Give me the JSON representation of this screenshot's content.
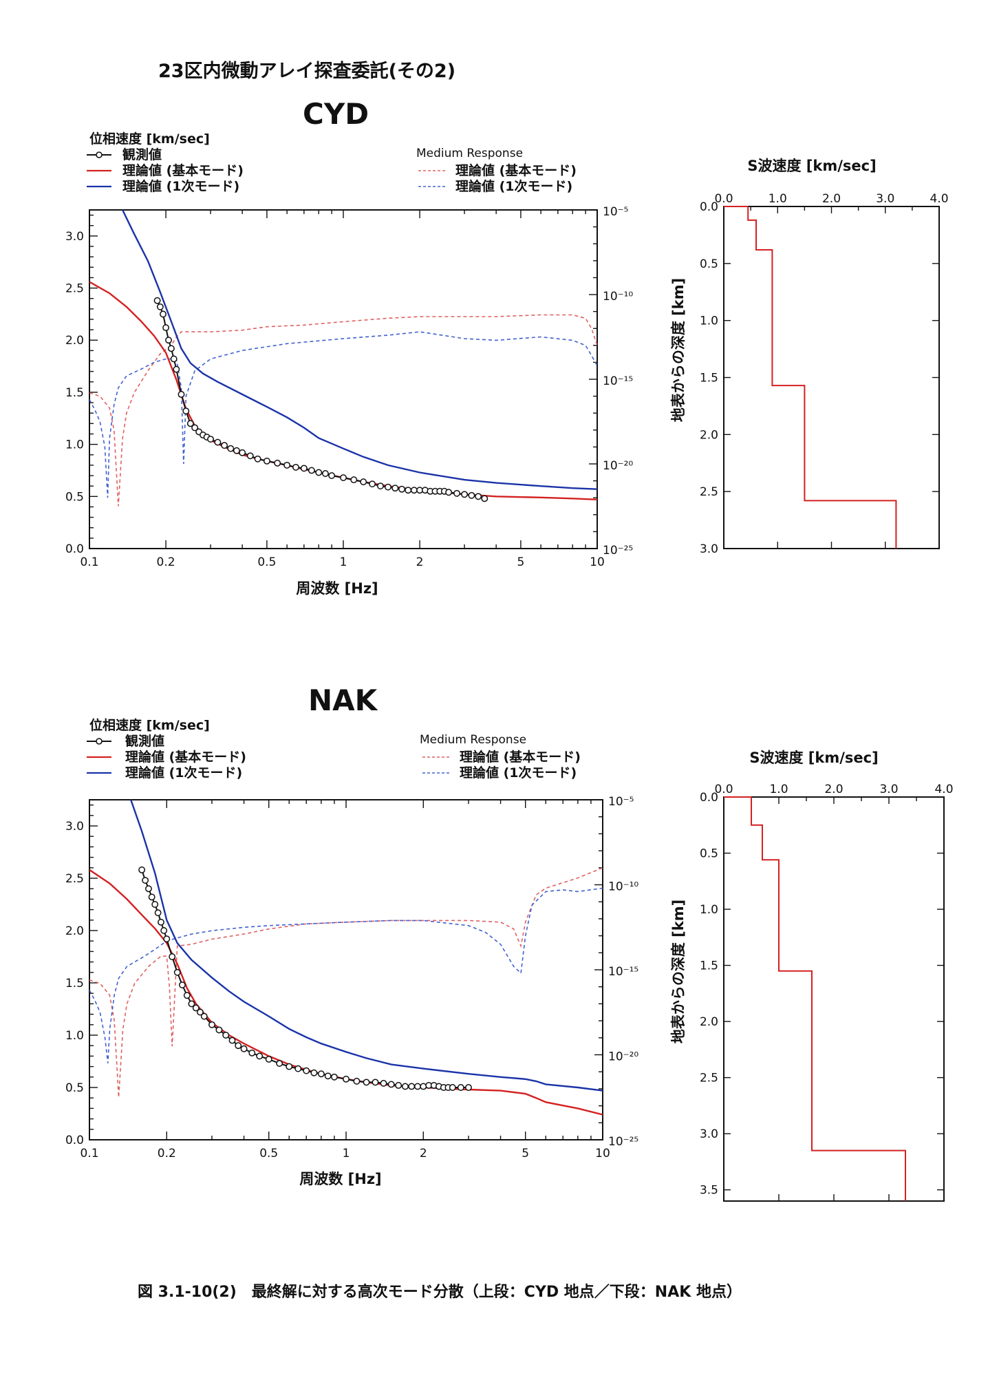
{
  "header": {
    "title": "23区内微動アレイ探査委託(その2)"
  },
  "caption": "図 3.1-10(2)　最終解に対する高次モード分散（上段：CYD 地点／下段：NAK 地点）",
  "legend": {
    "ylabel": "位相速度 [km/sec]",
    "observed": "観測値",
    "fundamental": "理論値 (基本モード)",
    "first_higher": "理論値 (1次モード)",
    "medium_response": "Medium Response",
    "mr_fundamental": "理論値 (基本モード)",
    "mr_first_higher": "理論値 (1次モード)"
  },
  "colors": {
    "observed": "#111111",
    "fundamental": "#d42020",
    "first_higher": "#1a33a8",
    "mr_fundamental": "#e06060",
    "mr_first_higher": "#4060d0",
    "profile": "#d42020"
  },
  "chart_data": [
    {
      "type": "line",
      "station": "CYD",
      "xlabel": "周波数 [Hz]",
      "ylabel": "位相速度 [km/sec]",
      "xscale": "log",
      "xlim": [
        0.1,
        10
      ],
      "ylim": [
        0,
        3.25
      ],
      "xticks": [
        "0.1",
        "0.2",
        "0.5",
        "1",
        "2",
        "5",
        "10"
      ],
      "xtick_values": [
        0.1,
        0.2,
        0.5,
        1,
        2,
        5,
        10
      ],
      "yticks": [
        "0.0",
        "0.5",
        "1.0",
        "1.5",
        "2.0",
        "2.5",
        "3.0"
      ],
      "ytick_values": [
        0,
        0.5,
        1.0,
        1.5,
        2.0,
        2.5,
        3.0
      ],
      "y2label": "Medium Response",
      "y2scale": "log",
      "y2lim": [
        1e-25,
        1e-05
      ],
      "y2ticks": [
        "10⁻⁵",
        "10⁻¹⁰",
        "10⁻¹⁵",
        "10⁻²⁰",
        "10⁻²⁵"
      ],
      "y2tick_exponents": [
        -5,
        -10,
        -15,
        -20,
        -25
      ],
      "series": [
        {
          "name": "観測値",
          "style": "marker-line",
          "x": [
            0.185,
            0.19,
            0.195,
            0.2,
            0.205,
            0.21,
            0.215,
            0.22,
            0.23,
            0.24,
            0.25,
            0.26,
            0.27,
            0.28,
            0.29,
            0.3,
            0.32,
            0.34,
            0.36,
            0.38,
            0.4,
            0.43,
            0.46,
            0.5,
            0.55,
            0.6,
            0.65,
            0.7,
            0.75,
            0.8,
            0.85,
            0.9,
            1.0,
            1.1,
            1.2,
            1.3,
            1.4,
            1.5,
            1.6,
            1.7,
            1.8,
            1.9,
            2.0,
            2.1,
            2.2,
            2.3,
            2.4,
            2.5,
            2.6,
            2.8,
            3.0,
            3.2,
            3.4,
            3.6
          ],
          "y": [
            2.38,
            2.32,
            2.25,
            2.12,
            2.0,
            1.92,
            1.82,
            1.72,
            1.48,
            1.32,
            1.2,
            1.16,
            1.12,
            1.09,
            1.07,
            1.05,
            1.02,
            0.99,
            0.96,
            0.94,
            0.92,
            0.89,
            0.86,
            0.84,
            0.82,
            0.8,
            0.78,
            0.77,
            0.75,
            0.73,
            0.72,
            0.7,
            0.68,
            0.66,
            0.64,
            0.62,
            0.6,
            0.59,
            0.58,
            0.57,
            0.56,
            0.56,
            0.56,
            0.56,
            0.55,
            0.55,
            0.55,
            0.55,
            0.54,
            0.53,
            0.52,
            0.51,
            0.5,
            0.48
          ]
        },
        {
          "name": "理論値 (基本モード)",
          "style": "solid",
          "color_key": "fundamental",
          "x": [
            0.1,
            0.12,
            0.14,
            0.16,
            0.18,
            0.2,
            0.22,
            0.24,
            0.26,
            0.28,
            0.3,
            0.35,
            0.4,
            0.5,
            0.6,
            0.7,
            0.8,
            1,
            1.2,
            1.5,
            2,
            3,
            4,
            6,
            8,
            10
          ],
          "y": [
            2.56,
            2.45,
            2.32,
            2.18,
            2.04,
            1.88,
            1.62,
            1.34,
            1.18,
            1.1,
            1.04,
            0.96,
            0.9,
            0.84,
            0.8,
            0.76,
            0.73,
            0.68,
            0.64,
            0.6,
            0.56,
            0.52,
            0.5,
            0.49,
            0.48,
            0.47
          ]
        },
        {
          "name": "理論値 (1次モード)",
          "style": "solid",
          "color_key": "first_higher",
          "x": [
            0.135,
            0.15,
            0.17,
            0.19,
            0.21,
            0.23,
            0.25,
            0.28,
            0.32,
            0.4,
            0.5,
            0.6,
            0.7,
            0.8,
            1,
            1.2,
            1.5,
            2,
            3,
            4,
            6,
            8,
            10
          ],
          "y": [
            3.25,
            3.02,
            2.76,
            2.46,
            2.18,
            1.92,
            1.78,
            1.68,
            1.6,
            1.48,
            1.36,
            1.26,
            1.16,
            1.06,
            0.96,
            0.88,
            0.8,
            0.73,
            0.66,
            0.63,
            0.6,
            0.58,
            0.57
          ]
        },
        {
          "name": "理論値 (基本モード)",
          "style": "dashed",
          "axis": "y2",
          "color_key": "mr_fundamental",
          "x": [
            0.1,
            0.11,
            0.12,
            0.125,
            0.13,
            0.135,
            0.14,
            0.15,
            0.17,
            0.19,
            0.21,
            0.22,
            0.23,
            0.26,
            0.3,
            0.4,
            0.5,
            0.7,
            1,
            1.5,
            2,
            3,
            4,
            6,
            8,
            9,
            9.5,
            10
          ],
          "y_exp": [
            -15.8,
            -16.0,
            -16.7,
            -18.0,
            -22.5,
            -18.5,
            -17.0,
            -15.8,
            -14.5,
            -13.5,
            -13.0,
            -12.5,
            -12.2,
            -12.2,
            -12.2,
            -12.1,
            -11.9,
            -11.8,
            -11.6,
            -11.4,
            -11.3,
            -11.3,
            -11.3,
            -11.2,
            -11.2,
            -11.4,
            -12.0,
            -13.0
          ]
        },
        {
          "name": "理論値 (1次モード)",
          "style": "dashed",
          "axis": "y2",
          "color_key": "mr_first_higher",
          "x": [
            0.1,
            0.105,
            0.11,
            0.115,
            0.118,
            0.12,
            0.125,
            0.13,
            0.14,
            0.16,
            0.18,
            0.2,
            0.22,
            0.23,
            0.235,
            0.24,
            0.26,
            0.3,
            0.4,
            0.6,
            1,
            1.5,
            2,
            3,
            4,
            6,
            8,
            9,
            9.5,
            10
          ],
          "y_exp": [
            -16.2,
            -16.8,
            -17.5,
            -19.0,
            -22.0,
            -18.5,
            -16.5,
            -15.5,
            -14.8,
            -14.4,
            -14.0,
            -13.8,
            -13.8,
            -15.5,
            -20.0,
            -16.0,
            -14.5,
            -13.8,
            -13.3,
            -12.9,
            -12.6,
            -12.4,
            -12.2,
            -12.6,
            -12.7,
            -12.5,
            -12.7,
            -13.0,
            -13.6,
            -14.2
          ]
        }
      ]
    },
    {
      "type": "line",
      "station": "NAK",
      "xlabel": "周波数 [Hz]",
      "ylabel": "位相速度 [km/sec]",
      "xscale": "log",
      "xlim": [
        0.1,
        10
      ],
      "ylim": [
        0,
        3.25
      ],
      "xticks": [
        "0.1",
        "0.2",
        "0.5",
        "1",
        "2",
        "5",
        "10"
      ],
      "xtick_values": [
        0.1,
        0.2,
        0.5,
        1,
        2,
        5,
        10
      ],
      "yticks": [
        "0.0",
        "0.5",
        "1.0",
        "1.5",
        "2.0",
        "2.5",
        "3.0"
      ],
      "ytick_values": [
        0,
        0.5,
        1.0,
        1.5,
        2.0,
        2.5,
        3.0
      ],
      "y2label": "Medium Response",
      "y2scale": "log",
      "y2lim": [
        1e-25,
        1e-05
      ],
      "y2ticks": [
        "10⁻⁵",
        "10⁻¹⁰",
        "10⁻¹⁵",
        "10⁻²⁰",
        "10⁻²⁵"
      ],
      "y2tick_exponents": [
        -5,
        -10,
        -15,
        -20,
        -25
      ],
      "series": [
        {
          "name": "観測値",
          "style": "marker-line",
          "x": [
            0.16,
            0.165,
            0.17,
            0.175,
            0.18,
            0.185,
            0.19,
            0.195,
            0.2,
            0.21,
            0.22,
            0.23,
            0.24,
            0.25,
            0.26,
            0.27,
            0.28,
            0.3,
            0.32,
            0.34,
            0.36,
            0.38,
            0.4,
            0.43,
            0.46,
            0.5,
            0.55,
            0.6,
            0.65,
            0.7,
            0.75,
            0.8,
            0.85,
            0.9,
            1.0,
            1.1,
            1.2,
            1.3,
            1.4,
            1.5,
            1.6,
            1.7,
            1.8,
            1.9,
            2.0,
            2.1,
            2.2,
            2.3,
            2.4,
            2.5,
            2.6,
            2.8,
            3.0
          ],
          "y": [
            2.58,
            2.48,
            2.4,
            2.32,
            2.25,
            2.17,
            2.08,
            2.0,
            1.92,
            1.75,
            1.6,
            1.48,
            1.38,
            1.3,
            1.26,
            1.22,
            1.18,
            1.1,
            1.05,
            1.0,
            0.95,
            0.9,
            0.87,
            0.83,
            0.8,
            0.77,
            0.73,
            0.7,
            0.68,
            0.66,
            0.64,
            0.63,
            0.61,
            0.6,
            0.58,
            0.56,
            0.55,
            0.55,
            0.54,
            0.53,
            0.52,
            0.51,
            0.51,
            0.51,
            0.51,
            0.52,
            0.52,
            0.51,
            0.5,
            0.5,
            0.5,
            0.5,
            0.5
          ]
        },
        {
          "name": "理論値 (基本モード)",
          "style": "solid",
          "color_key": "fundamental",
          "x": [
            0.1,
            0.12,
            0.14,
            0.16,
            0.18,
            0.2,
            0.22,
            0.24,
            0.26,
            0.3,
            0.35,
            0.4,
            0.5,
            0.6,
            0.7,
            0.8,
            1,
            1.2,
            1.5,
            2,
            3,
            4,
            5,
            5.5,
            6,
            8,
            10
          ],
          "y": [
            2.58,
            2.45,
            2.3,
            2.15,
            2.02,
            1.88,
            1.68,
            1.45,
            1.3,
            1.12,
            1.0,
            0.92,
            0.8,
            0.72,
            0.67,
            0.63,
            0.58,
            0.55,
            0.52,
            0.5,
            0.48,
            0.47,
            0.44,
            0.4,
            0.36,
            0.3,
            0.24
          ]
        },
        {
          "name": "理論値 (1次モード)",
          "style": "solid",
          "color_key": "first_higher",
          "x": [
            0.145,
            0.16,
            0.18,
            0.2,
            0.22,
            0.25,
            0.3,
            0.35,
            0.4,
            0.5,
            0.6,
            0.7,
            0.8,
            1,
            1.2,
            1.5,
            2,
            3,
            4,
            5,
            5.5,
            6,
            8,
            10
          ],
          "y": [
            3.25,
            2.95,
            2.55,
            2.1,
            1.88,
            1.72,
            1.55,
            1.42,
            1.32,
            1.18,
            1.06,
            0.98,
            0.92,
            0.84,
            0.78,
            0.72,
            0.68,
            0.63,
            0.6,
            0.58,
            0.56,
            0.53,
            0.5,
            0.47
          ]
        },
        {
          "name": "理論値 (基本モード)",
          "style": "dashed",
          "axis": "y2",
          "color_key": "mr_fundamental",
          "x": [
            0.1,
            0.11,
            0.12,
            0.125,
            0.13,
            0.135,
            0.14,
            0.15,
            0.17,
            0.19,
            0.2,
            0.205,
            0.21,
            0.22,
            0.25,
            0.3,
            0.4,
            0.5,
            0.7,
            1,
            1.5,
            2,
            3,
            4,
            4.5,
            4.8,
            5,
            5.5,
            6,
            8,
            10
          ],
          "y_exp": [
            -15.6,
            -15.8,
            -16.5,
            -18.0,
            -22.5,
            -18.5,
            -17.0,
            -15.8,
            -14.8,
            -14.2,
            -14.2,
            -16.0,
            -19.5,
            -13.6,
            -13.5,
            -13.2,
            -12.9,
            -12.6,
            -12.3,
            -12.2,
            -12.1,
            -12.1,
            -12.1,
            -12.2,
            -12.6,
            -13.6,
            -12.2,
            -10.6,
            -10.2,
            -9.6,
            -9.0
          ]
        },
        {
          "name": "理論値 (1次モード)",
          "style": "dashed",
          "axis": "y2",
          "color_key": "mr_first_higher",
          "x": [
            0.1,
            0.105,
            0.11,
            0.115,
            0.118,
            0.12,
            0.125,
            0.13,
            0.14,
            0.16,
            0.18,
            0.2,
            0.25,
            0.3,
            0.4,
            0.5,
            0.7,
            1,
            1.5,
            2,
            3,
            3.5,
            4,
            4.5,
            4.8,
            5.0,
            5.3,
            6,
            7,
            8,
            10
          ],
          "y_exp": [
            -16.2,
            -16.8,
            -17.5,
            -19.0,
            -20.5,
            -18.5,
            -16.5,
            -15.5,
            -14.8,
            -14.3,
            -13.8,
            -13.3,
            -12.9,
            -12.7,
            -12.5,
            -12.4,
            -12.3,
            -12.2,
            -12.1,
            -12.1,
            -12.4,
            -12.8,
            -13.5,
            -14.8,
            -15.2,
            -13.0,
            -11.2,
            -10.4,
            -10.3,
            -10.4,
            -10.2
          ]
        }
      ]
    },
    {
      "type": "line",
      "station": "CYD",
      "title": "S波速度 [km/sec]",
      "ylabel": "地表からの深度 [km]",
      "xlim": [
        0,
        4.0
      ],
      "ylim": [
        0,
        3.0
      ],
      "y_inverted": true,
      "xticks": [
        "0.0",
        "1.0",
        "2.0",
        "3.0",
        "4.0"
      ],
      "xtick_values": [
        0,
        1,
        2,
        3,
        4
      ],
      "yticks": [
        "0.0",
        "0.5",
        "1.0",
        "1.5",
        "2.0",
        "2.5",
        "3.0"
      ],
      "ytick_values": [
        0,
        0.5,
        1.0,
        1.5,
        2.0,
        2.5,
        3.0
      ],
      "series": [
        {
          "name": "",
          "style": "step",
          "color_key": "profile",
          "vs": [
            0.45,
            0.6,
            0.9,
            1.5,
            3.2
          ],
          "depth_bottoms": [
            0.12,
            0.38,
            1.57,
            2.58,
            3.0
          ]
        }
      ]
    },
    {
      "type": "line",
      "station": "NAK",
      "title": "S波速度 [km/sec]",
      "ylabel": "地表からの深度 [km]",
      "xlim": [
        0,
        4.0
      ],
      "ylim": [
        0,
        3.6
      ],
      "y_inverted": true,
      "xticks": [
        "0.0",
        "1.0",
        "2.0",
        "3.0",
        "4.0"
      ],
      "xtick_values": [
        0,
        1,
        2,
        3,
        4
      ],
      "yticks": [
        "0.0",
        "0.5",
        "1.0",
        "1.5",
        "2.0",
        "2.5",
        "3.0",
        "3.5"
      ],
      "ytick_values": [
        0,
        0.5,
        1.0,
        1.5,
        2.0,
        2.5,
        3.0,
        3.5
      ],
      "series": [
        {
          "name": "",
          "style": "step",
          "color_key": "profile",
          "vs": [
            0.5,
            0.7,
            1.0,
            1.6,
            3.3
          ],
          "depth_bottoms": [
            0.25,
            0.56,
            1.55,
            3.15,
            3.6
          ]
        }
      ]
    }
  ]
}
